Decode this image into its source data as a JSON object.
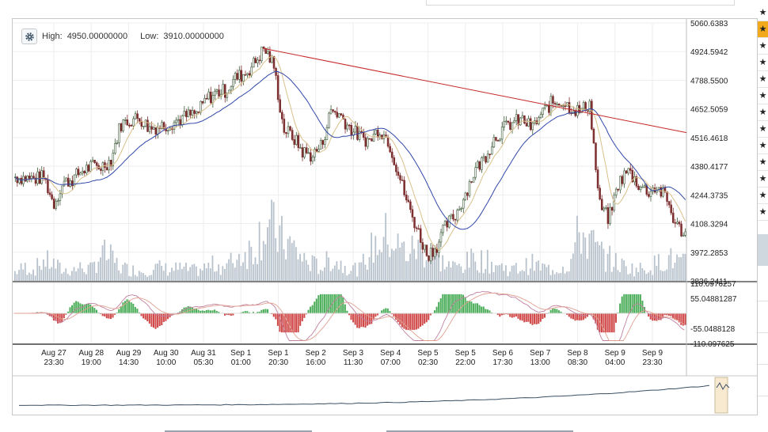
{
  "chart_data": {
    "type": "candlestick",
    "high_label": "High:",
    "high_value": "4950.00000000",
    "low_label": "Low:",
    "low_value": "3910.00000000",
    "price_axis_ticks": [
      "5060.6383",
      "4924.5942",
      "4788.5500",
      "4652.5059",
      "4516.4618",
      "4380.4177",
      "4244.3735",
      "4108.3294",
      "3972.2853",
      "3836.2411"
    ],
    "price_range": [
      3836.2411,
      5060.6383
    ],
    "indicator_axis_ticks": [
      "110.0976257",
      "55.04881287",
      "-55.0488128",
      "-110.097625"
    ],
    "indicator_range": [
      -110.097625,
      110.0976257
    ],
    "x_ticks": [
      {
        "date": "Aug 27",
        "time": "23:30"
      },
      {
        "date": "Aug 28",
        "time": "19:00"
      },
      {
        "date": "Aug 29",
        "time": "14:30"
      },
      {
        "date": "Aug 30",
        "time": "10:00"
      },
      {
        "date": "Aug 31",
        "time": "05:30"
      },
      {
        "date": "Sep 1",
        "time": "01:00"
      },
      {
        "date": "Sep 1",
        "time": "20:30"
      },
      {
        "date": "Sep 2",
        "time": "16:00"
      },
      {
        "date": "Sep 3",
        "time": "11:30"
      },
      {
        "date": "Sep 4",
        "time": "07:00"
      },
      {
        "date": "Sep 5",
        "time": "02:30"
      },
      {
        "date": "Sep 5",
        "time": "22:00"
      },
      {
        "date": "Sep 6",
        "time": "17:30"
      },
      {
        "date": "Sep 7",
        "time": "13:00"
      },
      {
        "date": "Sep 8",
        "time": "08:30"
      },
      {
        "date": "Sep 9",
        "time": "04:00"
      },
      {
        "date": "Sep 9",
        "time": "23:30"
      }
    ],
    "price_anchors": [
      4330,
      4325,
      4320,
      4330,
      4200,
      4300,
      4320,
      4360,
      4380,
      4380,
      4410,
      4580,
      4600,
      4610,
      4560,
      4570,
      4580,
      4600,
      4620,
      4630,
      4700,
      4730,
      4740,
      4800,
      4820,
      4870,
      4940,
      4860,
      4560,
      4520,
      4450,
      4430,
      4480,
      4650,
      4620,
      4560,
      4520,
      4500,
      4560,
      4500,
      4350,
      4200,
      4080,
      3960,
      4000,
      4100,
      4150,
      4250,
      4360,
      4420,
      4510,
      4560,
      4590,
      4600,
      4560,
      4630,
      4680,
      4690,
      4660,
      4640,
      4680,
      4200,
      4130,
      4300,
      4360,
      4300,
      4260,
      4280,
      4230,
      4100,
      4060
    ],
    "volume_anchors": [
      0.08,
      0.12,
      0.1,
      0.18,
      0.15,
      0.09,
      0.1,
      0.12,
      0.1,
      0.25,
      0.2,
      0.12,
      0.1,
      0.09,
      0.1,
      0.12,
      0.1,
      0.11,
      0.1,
      0.09,
      0.12,
      0.15,
      0.12,
      0.2,
      0.25,
      0.3,
      0.5,
      0.45,
      0.35,
      0.3,
      0.2,
      0.15,
      0.12,
      0.2,
      0.15,
      0.12,
      0.1,
      0.25,
      0.35,
      0.4,
      0.3,
      0.25,
      0.3,
      0.25,
      0.2,
      0.15,
      0.12,
      0.15,
      0.2,
      0.18,
      0.15,
      0.12,
      0.1,
      0.12,
      0.15,
      0.12,
      0.1,
      0.12,
      0.15,
      0.45,
      0.35,
      0.25,
      0.2,
      0.15,
      0.12,
      0.1,
      0.12,
      0.15,
      0.2,
      0.18,
      0.15
    ],
    "trendline": {
      "from_value": 4940,
      "to_value": 4540,
      "color": "#c62828"
    },
    "colors": {
      "candle_up": "#3e5b3a",
      "candle_down": "#7d2f2f",
      "ma_fast": "#d8c08a",
      "ma_slow": "#3048a8",
      "volume": "#b8c2cc",
      "hist_up": "#4cae5a",
      "hist_down": "#d04848",
      "osc_line_1": "#c080a0",
      "osc_line_2": "#e0a090",
      "grid": "#eeeeee",
      "navigator_line": "#3a4f63"
    }
  }
}
